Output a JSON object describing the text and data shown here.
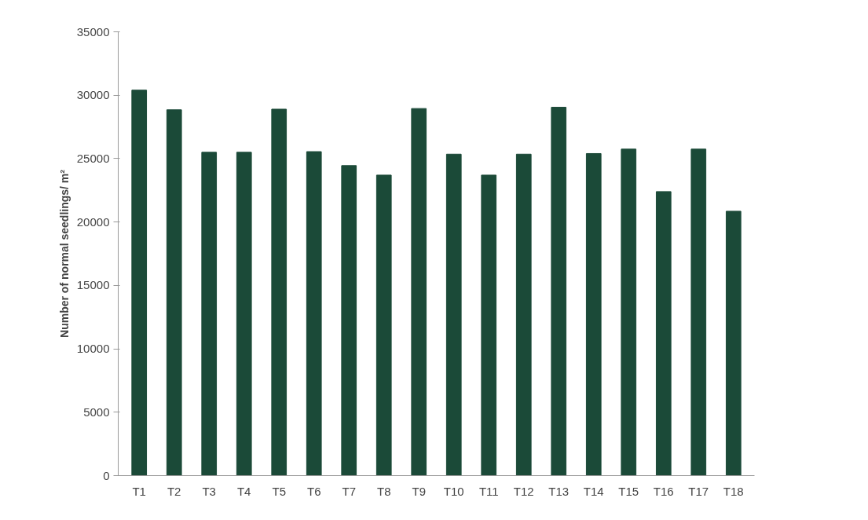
{
  "chart_data": {
    "type": "bar",
    "ylabel": "Number of normal seedlings/ m²",
    "categories": [
      "T1",
      "T2",
      "T3",
      "T4",
      "T5",
      "T6",
      "T7",
      "T8",
      "T9",
      "T10",
      "T11",
      "T12",
      "T13",
      "T14",
      "T15",
      "T16",
      "T17",
      "T18"
    ],
    "values": [
      30400,
      28850,
      25500,
      25500,
      28900,
      25550,
      24450,
      23700,
      28950,
      25350,
      23700,
      25350,
      29050,
      25400,
      25750,
      22400,
      25750,
      20850
    ],
    "color": "#1b4a38",
    "ylim": [
      0,
      35000
    ],
    "yticks": [
      0,
      5000,
      10000,
      15000,
      20000,
      25000,
      30000,
      35000
    ],
    "grid": false
  }
}
